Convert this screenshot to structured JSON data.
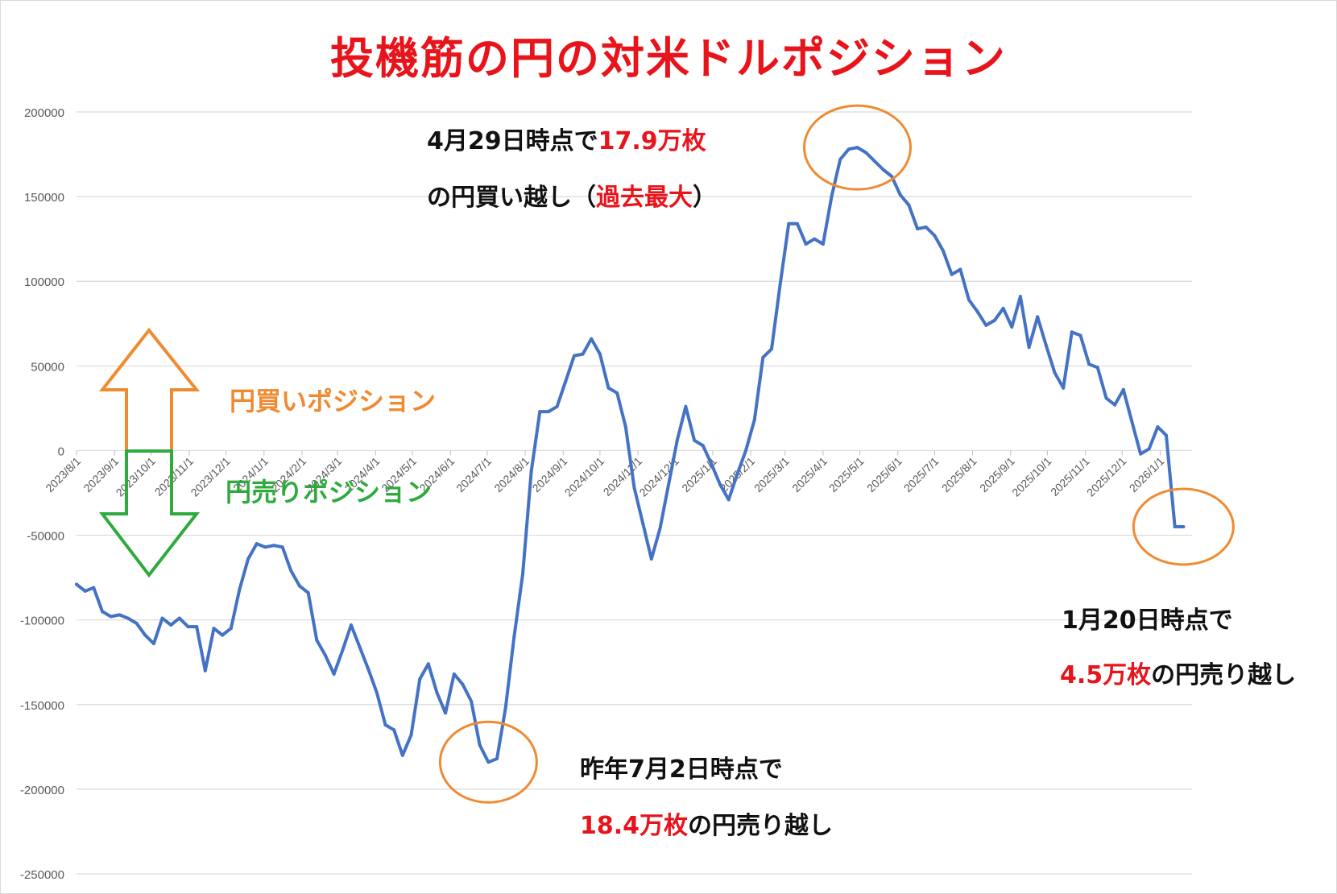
{
  "chart_data": {
    "type": "line",
    "title": "投機筋の円の対米ドルポジション",
    "ylim": [
      -250000,
      200000
    ],
    "y_ticks": [
      "200000",
      "150000",
      "100000",
      "50000",
      "0",
      "-50000",
      "-100000",
      "-150000",
      "-200000",
      "-250000"
    ],
    "x_start": "2023-08-01",
    "x_end": "2026-01-27",
    "x_tick_labels": [
      "2023/8/1",
      "2023/9/1",
      "2023/10/1",
      "2023/11/1",
      "2023/12/1",
      "2024/1/1",
      "2024/2/1",
      "2024/3/1",
      "2024/4/1",
      "2024/5/1",
      "2024/6/1",
      "2024/7/1",
      "2024/8/1",
      "2024/9/1",
      "2024/10/1",
      "2024/11/1",
      "2024/12/1",
      "2025/1/1",
      "2025/2/1",
      "2025/3/1",
      "2025/4/1",
      "2025/5/1",
      "2025/6/1",
      "2025/7/1",
      "2025/8/1",
      "2025/9/1",
      "2025/10/1",
      "2025/11/1",
      "2025/12/1",
      "2026/1/1"
    ],
    "grid": true,
    "series": [
      {
        "color": "#4472c4",
        "points": [
          [
            "2023-08-01",
            -79000
          ],
          [
            "2023-08-08",
            -83000
          ],
          [
            "2023-08-15",
            -81000
          ],
          [
            "2023-08-22",
            -95000
          ],
          [
            "2023-08-29",
            -98000
          ],
          [
            "2023-09-05",
            -97000
          ],
          [
            "2023-09-12",
            -99000
          ],
          [
            "2023-09-19",
            -102000
          ],
          [
            "2023-09-26",
            -109000
          ],
          [
            "2023-10-03",
            -114000
          ],
          [
            "2023-10-10",
            -99000
          ],
          [
            "2023-10-17",
            -103000
          ],
          [
            "2023-10-24",
            -99000
          ],
          [
            "2023-10-31",
            -104000
          ],
          [
            "2023-11-07",
            -104000
          ],
          [
            "2023-11-14",
            -130000
          ],
          [
            "2023-11-21",
            -105000
          ],
          [
            "2023-11-28",
            -109000
          ],
          [
            "2023-12-05",
            -105000
          ],
          [
            "2023-12-12",
            -82000
          ],
          [
            "2023-12-19",
            -64000
          ],
          [
            "2023-12-26",
            -55000
          ],
          [
            "2024-01-02",
            -57000
          ],
          [
            "2024-01-09",
            -56000
          ],
          [
            "2024-01-16",
            -57000
          ],
          [
            "2024-01-23",
            -71000
          ],
          [
            "2024-01-30",
            -80000
          ],
          [
            "2024-02-06",
            -84000
          ],
          [
            "2024-02-13",
            -112000
          ],
          [
            "2024-02-20",
            -121000
          ],
          [
            "2024-02-27",
            -132000
          ],
          [
            "2024-03-05",
            -118000
          ],
          [
            "2024-03-12",
            -103000
          ],
          [
            "2024-03-19",
            -116000
          ],
          [
            "2024-03-26",
            -129000
          ],
          [
            "2024-04-02",
            -143000
          ],
          [
            "2024-04-09",
            -162000
          ],
          [
            "2024-04-16",
            -165000
          ],
          [
            "2024-04-23",
            -180000
          ],
          [
            "2024-04-30",
            -168000
          ],
          [
            "2024-05-07",
            -135000
          ],
          [
            "2024-05-14",
            -126000
          ],
          [
            "2024-05-21",
            -143000
          ],
          [
            "2024-05-28",
            -155000
          ],
          [
            "2024-06-04",
            -132000
          ],
          [
            "2024-06-11",
            -138000
          ],
          [
            "2024-06-18",
            -148000
          ],
          [
            "2024-06-25",
            -174000
          ],
          [
            "2024-07-02",
            -184000
          ],
          [
            "2024-07-09",
            -182000
          ],
          [
            "2024-07-16",
            -152000
          ],
          [
            "2024-07-23",
            -110000
          ],
          [
            "2024-07-30",
            -73000
          ],
          [
            "2024-08-06",
            -12000
          ],
          [
            "2024-08-13",
            23000
          ],
          [
            "2024-08-20",
            23000
          ],
          [
            "2024-08-27",
            26000
          ],
          [
            "2024-09-03",
            41000
          ],
          [
            "2024-09-10",
            56000
          ],
          [
            "2024-09-17",
            57000
          ],
          [
            "2024-09-24",
            66000
          ],
          [
            "2024-10-01",
            57000
          ],
          [
            "2024-10-08",
            37000
          ],
          [
            "2024-10-15",
            34000
          ],
          [
            "2024-10-22",
            14000
          ],
          [
            "2024-10-29",
            -22000
          ],
          [
            "2024-11-05",
            -43000
          ],
          [
            "2024-11-12",
            -64000
          ],
          [
            "2024-11-19",
            -46000
          ],
          [
            "2024-11-26",
            -20000
          ],
          [
            "2024-12-03",
            6000
          ],
          [
            "2024-12-10",
            26000
          ],
          [
            "2024-12-17",
            6000
          ],
          [
            "2024-12-24",
            3000
          ],
          [
            "2024-12-31",
            -8000
          ],
          [
            "2025-01-07",
            -20000
          ],
          [
            "2025-01-14",
            -29000
          ],
          [
            "2025-01-21",
            -14000
          ],
          [
            "2025-01-28",
            0
          ],
          [
            "2025-02-04",
            18000
          ],
          [
            "2025-02-11",
            55000
          ],
          [
            "2025-02-18",
            60000
          ],
          [
            "2025-02-25",
            98000
          ],
          [
            "2025-03-04",
            134000
          ],
          [
            "2025-03-11",
            134000
          ],
          [
            "2025-03-18",
            122000
          ],
          [
            "2025-03-25",
            125000
          ],
          [
            "2025-04-01",
            122000
          ],
          [
            "2025-04-08",
            150000
          ],
          [
            "2025-04-15",
            172000
          ],
          [
            "2025-04-22",
            178000
          ],
          [
            "2025-04-29",
            179000
          ],
          [
            "2025-05-06",
            176000
          ],
          [
            "2025-05-13",
            171000
          ],
          [
            "2025-05-20",
            166000
          ],
          [
            "2025-05-27",
            162000
          ],
          [
            "2025-06-03",
            151000
          ],
          [
            "2025-06-10",
            145000
          ],
          [
            "2025-06-17",
            131000
          ],
          [
            "2025-06-24",
            132000
          ],
          [
            "2025-07-01",
            127000
          ],
          [
            "2025-07-08",
            118000
          ],
          [
            "2025-07-15",
            104000
          ],
          [
            "2025-07-22",
            107000
          ],
          [
            "2025-07-29",
            89000
          ],
          [
            "2025-08-05",
            82000
          ],
          [
            "2025-08-12",
            74000
          ],
          [
            "2025-08-19",
            77000
          ],
          [
            "2025-08-26",
            84000
          ],
          [
            "2025-09-02",
            73000
          ],
          [
            "2025-09-09",
            91000
          ],
          [
            "2025-09-16",
            61000
          ],
          [
            "2025-09-23",
            79000
          ],
          [
            "2025-09-30",
            62000
          ],
          [
            "2025-10-07",
            46000
          ],
          [
            "2025-10-14",
            37000
          ],
          [
            "2025-10-21",
            70000
          ],
          [
            "2025-10-28",
            68000
          ],
          [
            "2025-11-04",
            51000
          ],
          [
            "2025-11-11",
            49000
          ],
          [
            "2025-11-18",
            31000
          ],
          [
            "2025-11-25",
            27000
          ],
          [
            "2025-12-02",
            36000
          ],
          [
            "2025-12-09",
            17000
          ],
          [
            "2025-12-16",
            -2000
          ],
          [
            "2025-12-23",
            1000
          ],
          [
            "2025-12-30",
            14000
          ],
          [
            "2026-01-06",
            9000
          ],
          [
            "2026-01-13",
            -45000
          ],
          [
            "2026-01-20",
            -45000
          ]
        ]
      }
    ],
    "annotations": [
      {
        "line1_a": "4月29日時点で",
        "line1_b": "17.9万枚",
        "line2_a": "の円買い越し（",
        "line2_b": "過去最大",
        "line2_c": "）"
      },
      {
        "line1_a": "昨年7月2日時点で",
        "line2_a": "18.4万枚",
        "line2_b": "の円売り越し"
      },
      {
        "line1_a": "1月20日時点で",
        "line2_a": "4.5万枚",
        "line2_b": "の円売り越し"
      }
    ],
    "position_labels": {
      "buy": "円買いポジション",
      "sell": "円売りポジション"
    },
    "colors": {
      "line": "#4472c4",
      "highlight_red": "#e8141b",
      "circle_orange": "#f08a30",
      "buy_orange": "#f08a30",
      "sell_green": "#2eaa3e",
      "grid": "#d9d9d9",
      "axis_text": "#595959"
    }
  }
}
